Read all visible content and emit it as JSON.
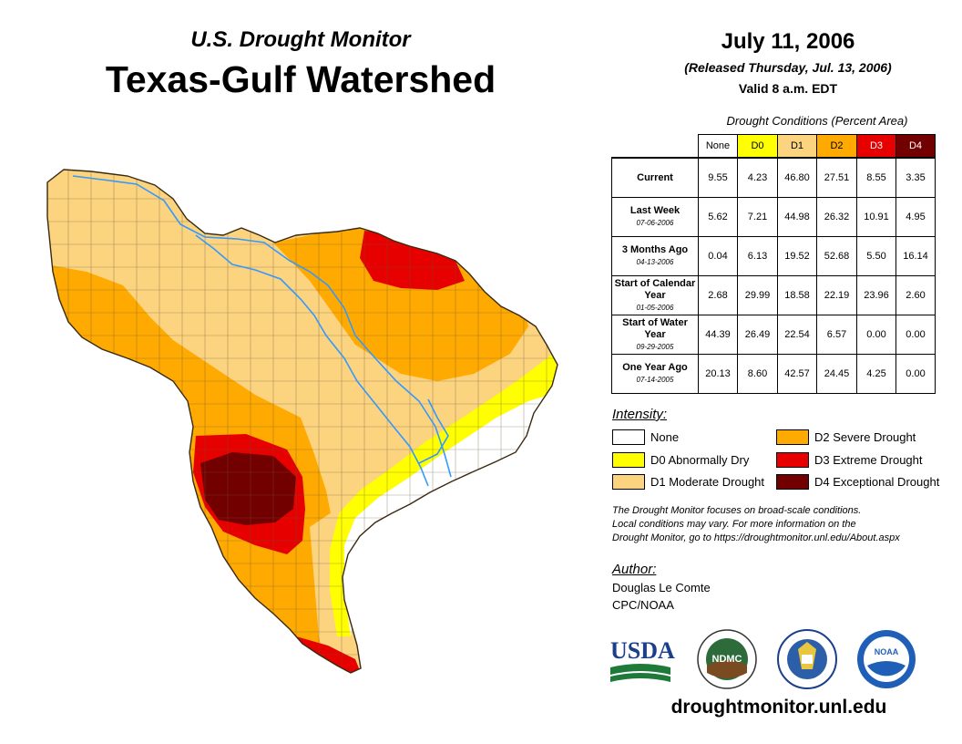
{
  "header": {
    "subtitle": "U.S. Drought Monitor",
    "title": "Texas-Gulf Watershed"
  },
  "release": {
    "date": "July 11, 2006",
    "released": "(Released Thursday, Jul. 13, 2006)",
    "valid": "Valid 8 a.m. EDT"
  },
  "table": {
    "caption": "Drought Conditions (Percent Area)",
    "columns": [
      "None",
      "D0",
      "D1",
      "D2",
      "D3",
      "D4"
    ],
    "column_colors": [
      "#ffffff",
      "#ffff00",
      "#fcd37f",
      "#ffaa00",
      "#e60000",
      "#730000"
    ],
    "rows": [
      {
        "label": "Current",
        "date": "",
        "values": [
          "9.55",
          "4.23",
          "46.80",
          "27.51",
          "8.55",
          "3.35"
        ]
      },
      {
        "label": "Last Week",
        "date": "07-06-2006",
        "values": [
          "5.62",
          "7.21",
          "44.98",
          "26.32",
          "10.91",
          "4.95"
        ]
      },
      {
        "label": "3 Months Ago",
        "date": "04-13-2006",
        "values": [
          "0.04",
          "6.13",
          "19.52",
          "52.68",
          "5.50",
          "16.14"
        ]
      },
      {
        "label": "Start of Calendar Year",
        "date": "01-05-2006",
        "values": [
          "2.68",
          "29.99",
          "18.58",
          "22.19",
          "23.96",
          "2.60"
        ]
      },
      {
        "label": "Start of Water Year",
        "date": "09-29-2005",
        "values": [
          "44.39",
          "26.49",
          "22.54",
          "6.57",
          "0.00",
          "0.00"
        ]
      },
      {
        "label": "One Year Ago",
        "date": "07-14-2005",
        "values": [
          "20.13",
          "8.60",
          "42.57",
          "24.45",
          "4.25",
          "0.00"
        ]
      }
    ]
  },
  "legend": {
    "title": "Intensity:",
    "items": [
      {
        "label": "None",
        "color": "#ffffff"
      },
      {
        "label": "D0 Abnormally Dry",
        "color": "#ffff00"
      },
      {
        "label": "D1 Moderate Drought",
        "color": "#fcd37f"
      },
      {
        "label": "D2 Severe Drought",
        "color": "#ffaa00"
      },
      {
        "label": "D3 Extreme Drought",
        "color": "#e60000"
      },
      {
        "label": "D4 Exceptional Drought",
        "color": "#730000"
      }
    ]
  },
  "note": {
    "line1": "The Drought Monitor focuses on broad-scale conditions.",
    "line2": "Local conditions may vary. For more information on the",
    "line3": "Drought Monitor, go to https://droughtmonitor.unl.edu/About.aspx"
  },
  "author": {
    "title": "Author:",
    "name": "Douglas Le Comte",
    "org": "CPC/NOAA"
  },
  "logos": {
    "usda": "USDA",
    "ndmc": "NDMC",
    "noaa": "NOAA"
  },
  "website": "droughtmonitor.unl.edu",
  "map": {
    "region": "Texas-Gulf Watershed",
    "river_color": "#3399ff"
  }
}
